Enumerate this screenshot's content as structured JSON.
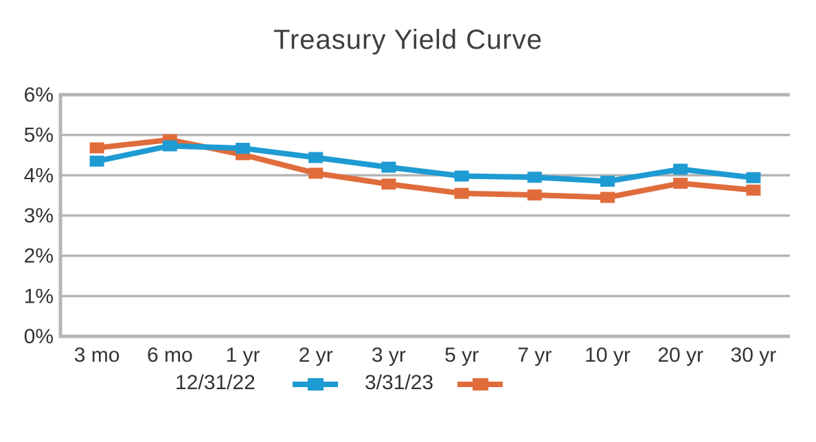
{
  "chart_data": {
    "type": "line",
    "title": "Treasury Yield Curve",
    "categories": [
      "3 mo",
      "6 mo",
      "1 yr",
      "2 yr",
      "3 yr",
      "5 yr",
      "7 yr",
      "10 yr",
      "20 yr",
      "30 yr"
    ],
    "series": [
      {
        "name": "12/31/22",
        "color": "#1E9BD2",
        "values": [
          4.35,
          4.73,
          4.67,
          4.44,
          4.2,
          3.98,
          3.95,
          3.85,
          4.15,
          3.94
        ]
      },
      {
        "name": "3/31/23",
        "color": "#E06C3C",
        "values": [
          4.68,
          4.88,
          4.51,
          4.05,
          3.78,
          3.55,
          3.51,
          3.45,
          3.8,
          3.63
        ]
      }
    ],
    "xlabel": "",
    "ylabel": "",
    "ylim": [
      0,
      6
    ],
    "y_ticks": [
      "0%",
      "1%",
      "2%",
      "3%",
      "4%",
      "5%",
      "6%"
    ],
    "grid": true,
    "gridline_color": "#B5B5B5",
    "text_color": "#333333",
    "legend_position": "bottom"
  }
}
